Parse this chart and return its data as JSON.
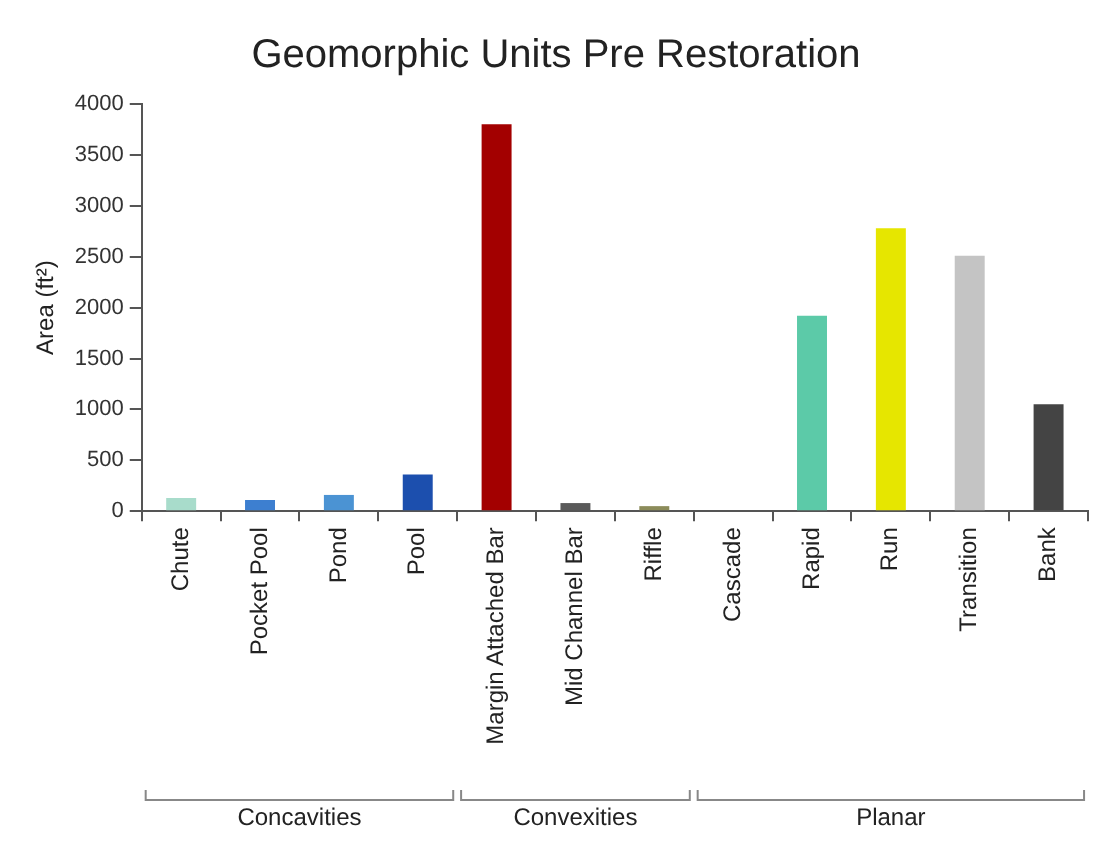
{
  "chart_data": {
    "type": "bar",
    "title": "Geomorphic Units Pre Restoration",
    "ylabel": "Area (ft²)",
    "categories": [
      "Chute",
      "Pocket Pool",
      "Pond",
      "Pool",
      "Margin Attached Bar",
      "Mid Channel Bar",
      "Riffle",
      "Cascade",
      "Rapid",
      "Run",
      "Transition",
      "Bank"
    ],
    "values": [
      130,
      110,
      160,
      360,
      3800,
      80,
      50,
      0,
      1920,
      2780,
      2510,
      1050
    ],
    "colors": [
      "#a8dccb",
      "#3d7fd0",
      "#4b93d3",
      "#1c4fae",
      "#a30000",
      "#5a5a5a",
      "#8c8c5a",
      "#808080",
      "#5ccaa8",
      "#e6e600",
      "#c4c4c4",
      "#444444"
    ],
    "ylim": [
      0,
      4000
    ],
    "yticks": [
      0,
      500,
      1000,
      1500,
      2000,
      2500,
      3000,
      3500,
      4000
    ],
    "annotations": [
      "Concavities",
      "Convexities",
      "Planar"
    ],
    "grid": false,
    "legend": false
  }
}
